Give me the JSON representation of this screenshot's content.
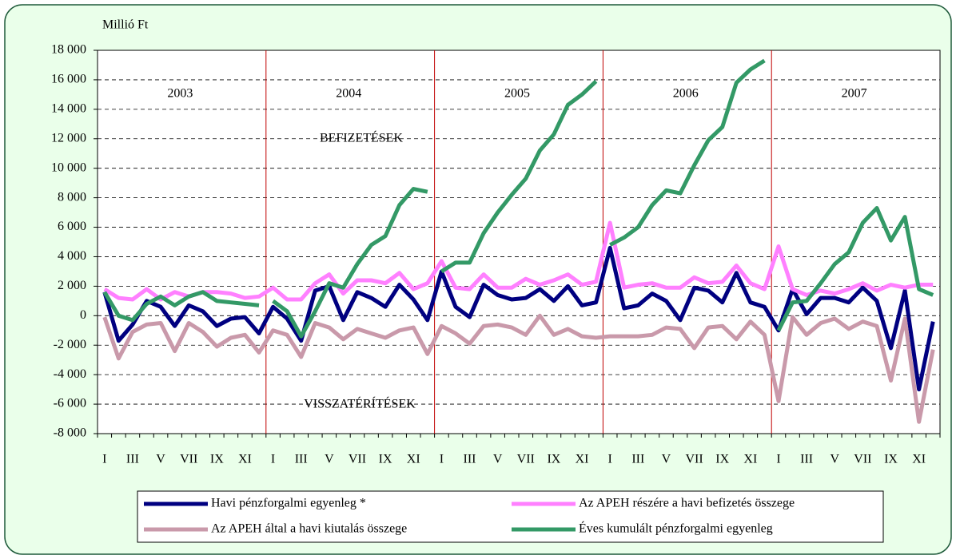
{
  "chart_data": {
    "type": "line",
    "y_unit_label": "Millió Ft",
    "years": [
      "2003",
      "2004",
      "2005",
      "2006",
      "2007"
    ],
    "annotations": [
      "BEFIZETÉSEK",
      "VISSZATÉRÍTÉSEK"
    ],
    "categories": [
      "I",
      null,
      "III",
      null,
      "V",
      null,
      "VII",
      null,
      "IX",
      null,
      "XI",
      null,
      "I",
      null,
      "III",
      null,
      "V",
      null,
      "VII",
      null,
      "IX",
      null,
      "XI",
      null,
      "I",
      null,
      "III",
      null,
      "V",
      null,
      "VII",
      null,
      "IX",
      null,
      "XI",
      null,
      "I",
      null,
      "III",
      null,
      "V",
      null,
      "VII",
      null,
      "IX",
      null,
      "XI",
      null,
      "I",
      null,
      "III",
      null,
      "V",
      null,
      "VII",
      null,
      "IX",
      null,
      "XI",
      null
    ],
    "ylim": [
      -8000,
      18000
    ],
    "yticks": [
      {
        "value": -8000,
        "label": "-8 000"
      },
      {
        "value": -6000,
        "label": "-6 000"
      },
      {
        "value": -4000,
        "label": "-4 000"
      },
      {
        "value": -2000,
        "label": "-2 000"
      },
      0,
      {
        "value": 2000,
        "label": "2 000"
      },
      {
        "value": 4000,
        "label": "4 000"
      },
      {
        "value": 6000,
        "label": "6 000"
      },
      {
        "value": 8000,
        "label": "8 000"
      },
      {
        "value": 10000,
        "label": "10 000"
      },
      {
        "value": 12000,
        "label": "12 000"
      },
      {
        "value": 14000,
        "label": "14 000"
      },
      {
        "value": 16000,
        "label": "16 000"
      },
      {
        "value": 18000,
        "label": "18 000"
      }
    ],
    "grid": true,
    "series": [
      {
        "name": "Havi pénzforgalmi egyenleg *",
        "color": "#000080",
        "values": [
          1600,
          -1700,
          -600,
          1000,
          600,
          -700,
          700,
          300,
          -700,
          -200,
          -100,
          -1200,
          600,
          -200,
          -1700,
          1700,
          2000,
          -300,
          1600,
          1200,
          600,
          2100,
          1100,
          -300,
          3000,
          600,
          -100,
          2100,
          1400,
          1100,
          1200,
          1800,
          1000,
          2000,
          700,
          900,
          4600,
          500,
          700,
          1500,
          1000,
          -300,
          1900,
          1700,
          900,
          2900,
          900,
          600,
          -1000,
          1800,
          100,
          1200,
          1200,
          900,
          1900,
          1000,
          -2200,
          1700,
          -5000,
          -400
        ]
      },
      {
        "name": "Az APEH részére a havi befizetés összege",
        "color": "#ff80ff",
        "values": [
          1800,
          1200,
          1100,
          1800,
          1100,
          1600,
          1300,
          1600,
          1600,
          1500,
          1200,
          1300,
          1900,
          1100,
          1100,
          2200,
          2800,
          1500,
          2400,
          2400,
          2200,
          2900,
          1800,
          2200,
          3700,
          1900,
          1800,
          2800,
          1900,
          1900,
          2500,
          2100,
          2400,
          2800,
          2100,
          2300,
          6300,
          1900,
          2100,
          2200,
          1900,
          1900,
          2600,
          2200,
          2300,
          3400,
          2200,
          1800,
          4700,
          1800,
          1400,
          1700,
          1500,
          1800,
          2200,
          1700,
          2100,
          1900,
          2100,
          2100
        ]
      },
      {
        "name": "Az APEH által a havi kiutalás összege",
        "color": "#c999aa",
        "values": [
          -100,
          -2900,
          -1100,
          -600,
          -500,
          -2400,
          -500,
          -1100,
          -2100,
          -1500,
          -1300,
          -2500,
          -1000,
          -1300,
          -2800,
          -500,
          -800,
          -1600,
          -900,
          -1200,
          -1500,
          -1000,
          -800,
          -2600,
          -700,
          -1200,
          -1900,
          -700,
          -600,
          -800,
          -1300,
          0,
          -1300,
          -900,
          -1400,
          -1500,
          -1400,
          -1400,
          -1400,
          -1300,
          -800,
          -900,
          -2200,
          -800,
          -700,
          -1600,
          -400,
          -1300,
          -5800,
          -100,
          -1300,
          -500,
          -200,
          -900,
          -400,
          -700,
          -4400,
          -200,
          -7200,
          -2300
        ]
      },
      {
        "name": "Éves kumulált pénzforgalmi egyenleg",
        "color": "#339966",
        "resets_yearly": true,
        "values": [
          1600,
          0,
          -300,
          800,
          1300,
          700,
          1300,
          1600,
          1000,
          900,
          800,
          700,
          1000,
          300,
          -1400,
          300,
          2200,
          1900,
          3500,
          4800,
          5400,
          7500,
          8600,
          8400,
          3000,
          3600,
          3600,
          5600,
          7000,
          8200,
          9300,
          11200,
          12300,
          14300,
          15000,
          15900,
          4800,
          5300,
          6000,
          7500,
          8500,
          8300,
          10200,
          11900,
          12800,
          15800,
          16700,
          17300,
          -1000,
          900,
          1000,
          2200,
          3500,
          4300,
          6300,
          7300,
          5100,
          6700,
          1800,
          1400
        ]
      }
    ]
  }
}
